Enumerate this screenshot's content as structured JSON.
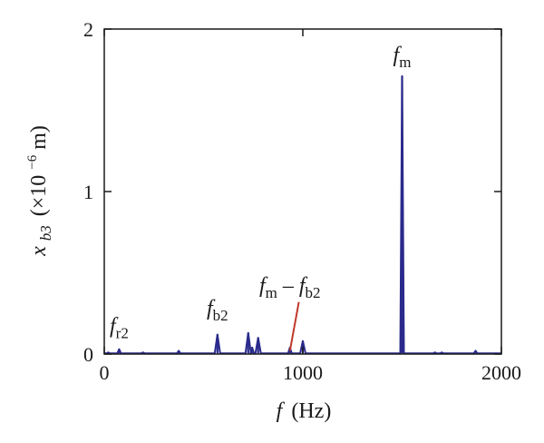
{
  "chart_data": {
    "type": "line",
    "title": "",
    "xlabel": {
      "symbol": "f",
      "unit": "(Hz)"
    },
    "ylabel": {
      "symbol": "x",
      "subscript": "b3",
      "unit_prefix": "(×10",
      "exponent": "−6",
      "unit_suffix": "m)"
    },
    "xlim": [
      0,
      2000
    ],
    "ylim": [
      0,
      2
    ],
    "xticks": [
      0,
      1000,
      2000
    ],
    "xtick_labels": [
      "0",
      "1000",
      "2000"
    ],
    "yticks": [
      0,
      1,
      2
    ],
    "ytick_labels": [
      "0",
      "1",
      "2"
    ],
    "grid": false,
    "series": [
      {
        "color": "#2a2a8c",
        "peaks": [
          {
            "f": 20,
            "amp": 0.01
          },
          {
            "f": 75,
            "amp": 0.03
          },
          {
            "f": 195,
            "amp": 0.01
          },
          {
            "f": 375,
            "amp": 0.02
          },
          {
            "f": 570,
            "amp": 0.12
          },
          {
            "f": 725,
            "amp": 0.13
          },
          {
            "f": 745,
            "amp": 0.04
          },
          {
            "f": 775,
            "amp": 0.1
          },
          {
            "f": 935,
            "amp": 0.04
          },
          {
            "f": 1000,
            "amp": 0.08
          },
          {
            "f": 1500,
            "amp": 1.71
          },
          {
            "f": 1665,
            "amp": 0.01
          },
          {
            "f": 1700,
            "amp": 0.01
          },
          {
            "f": 1870,
            "amp": 0.02
          }
        ]
      }
    ],
    "annotations": [
      {
        "base": "f",
        "sub": "r2",
        "f": 75,
        "y": 0.13
      },
      {
        "base": "f",
        "sub": "b2",
        "f": 570,
        "y": 0.24
      },
      {
        "base": "f",
        "sub": "m",
        "f": 1500,
        "y": 1.8
      },
      {
        "base": "f",
        "sub": "m",
        "middle": " – ",
        "base2": "f",
        "sub2": "b2",
        "f": 935,
        "y": 0.38,
        "arrow_color": "#c0392b",
        "arrow_from": [
          980,
          0.32
        ],
        "arrow_to": [
          935,
          0.02
        ]
      }
    ]
  }
}
